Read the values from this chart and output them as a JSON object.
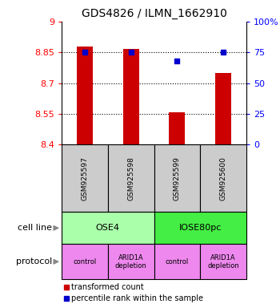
{
  "title": "GDS4826 / ILMN_1662910",
  "samples": [
    "GSM925597",
    "GSM925598",
    "GSM925599",
    "GSM925600"
  ],
  "bar_values": [
    8.878,
    8.868,
    8.558,
    8.748
  ],
  "percentile_values": [
    75.0,
    75.5,
    68.0,
    75.5
  ],
  "ylim_left": [
    8.4,
    9.0
  ],
  "ylim_right": [
    0,
    100
  ],
  "yticks_left": [
    8.4,
    8.55,
    8.7,
    8.85,
    9.0
  ],
  "yticks_right": [
    0,
    25,
    50,
    75,
    100
  ],
  "ytick_labels_left": [
    "8.4",
    "8.55",
    "8.7",
    "8.85",
    "9"
  ],
  "ytick_labels_right": [
    "0",
    "25",
    "50",
    "75",
    "100%"
  ],
  "bar_color": "#cc0000",
  "dot_color": "#0000cc",
  "bar_width": 0.35,
  "grid_yticks": [
    8.55,
    8.7,
    8.85
  ],
  "cell_lines": [
    [
      "OSE4",
      0,
      2
    ],
    [
      "IOSE80pc",
      2,
      4
    ]
  ],
  "cell_line_colors": [
    "#aaffaa",
    "#44ee44"
  ],
  "protocols": [
    "control",
    "ARID1A\ndepletion",
    "control",
    "ARID1A\ndepletion"
  ],
  "protocol_color": "#ee88ee",
  "sample_box_color": "#cccccc",
  "arrow_color": "#888888",
  "legend_red_label": "transformed count",
  "legend_blue_label": "percentile rank within the sample"
}
